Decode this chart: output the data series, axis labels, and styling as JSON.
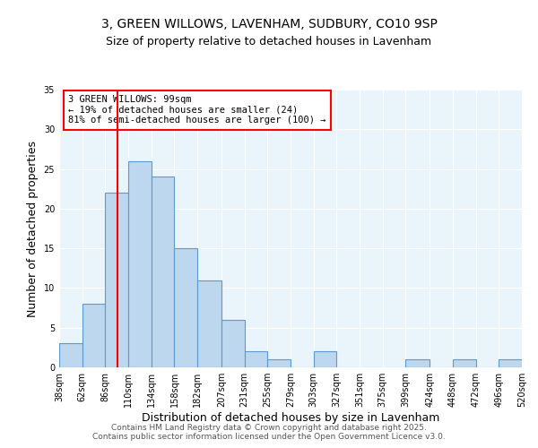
{
  "title1": "3, GREEN WILLOWS, LAVENHAM, SUDBURY, CO10 9SP",
  "title2": "Size of property relative to detached houses in Lavenham",
  "xlabel": "Distribution of detached houses by size in Lavenham",
  "ylabel": "Number of detached properties",
  "bar_values": [
    3,
    8,
    22,
    26,
    24,
    15,
    11,
    6,
    2,
    1,
    0,
    2,
    0,
    0,
    0,
    1,
    0,
    1,
    0,
    1
  ],
  "bin_labels": [
    "38sqm",
    "62sqm",
    "86sqm",
    "110sqm",
    "134sqm",
    "158sqm",
    "182sqm",
    "207sqm",
    "231sqm",
    "255sqm",
    "279sqm",
    "303sqm",
    "327sqm",
    "351sqm",
    "375sqm",
    "399sqm",
    "424sqm",
    "448sqm",
    "472sqm",
    "496sqm",
    "520sqm"
  ],
  "bin_edges": [
    38,
    62,
    86,
    110,
    134,
    158,
    182,
    207,
    231,
    255,
    279,
    303,
    327,
    351,
    375,
    399,
    424,
    448,
    472,
    496,
    520
  ],
  "bar_color": "#bdd7ee",
  "bar_edge_color": "#5b9bd5",
  "property_line_x": 99,
  "property_line_color": "#ff0000",
  "annotation_line1": "3 GREEN WILLOWS: 99sqm",
  "annotation_line2": "← 19% of detached houses are smaller (24)",
  "annotation_line3": "81% of semi-detached houses are larger (100) →",
  "ylim": [
    0,
    35
  ],
  "yticks": [
    0,
    5,
    10,
    15,
    20,
    25,
    30,
    35
  ],
  "footer1": "Contains HM Land Registry data © Crown copyright and database right 2025.",
  "footer2": "Contains public sector information licensed under the Open Government Licence v3.0.",
  "background_color": "#eaf4fb",
  "title_fontsize": 10,
  "subtitle_fontsize": 9,
  "axis_label_fontsize": 9,
  "tick_fontsize": 7,
  "annotation_fontsize": 7.5,
  "footer_fontsize": 6.5
}
